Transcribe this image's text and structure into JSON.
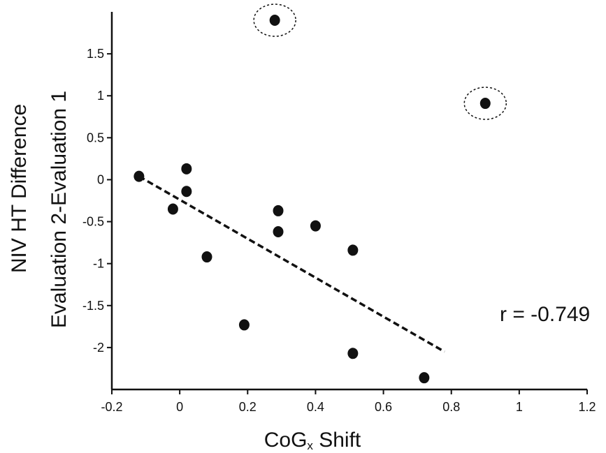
{
  "chart_data": {
    "type": "scatter",
    "title": "",
    "xlabel_main": "CoG",
    "xlabel_sub": "x",
    "xlabel_rest": " Shift",
    "ylabel_line1": "NIV HT Difference",
    "ylabel_line2": "Evaluation 2-Evaluation 1",
    "xlim": [
      -0.2,
      1.2
    ],
    "ylim": [
      -2.5,
      2.0
    ],
    "xticks": [
      -0.2,
      0,
      0.2,
      0.4,
      0.6,
      0.8,
      1,
      1.2
    ],
    "xtick_labels": [
      "-0.2",
      "0",
      "0.2",
      "0.4",
      "0.6",
      "0.8",
      "1",
      "1.2"
    ],
    "yticks": [
      -2,
      -1.5,
      -1,
      -0.5,
      0,
      0.5,
      1,
      1.5
    ],
    "ytick_labels": [
      "-2",
      "-1.5",
      "-1",
      "-0.5",
      "0",
      "0.5",
      "1",
      "1.5"
    ],
    "grid": false,
    "points": [
      {
        "x": -0.12,
        "y": 0.04
      },
      {
        "x": -0.02,
        "y": -0.35
      },
      {
        "x": 0.02,
        "y": 0.13
      },
      {
        "x": 0.02,
        "y": -0.14
      },
      {
        "x": 0.08,
        "y": -0.92
      },
      {
        "x": 0.19,
        "y": -1.73
      },
      {
        "x": 0.29,
        "y": -0.37
      },
      {
        "x": 0.29,
        "y": -0.62
      },
      {
        "x": 0.4,
        "y": -0.55
      },
      {
        "x": 0.51,
        "y": -0.84
      },
      {
        "x": 0.51,
        "y": -2.07
      },
      {
        "x": 0.72,
        "y": -2.36
      }
    ],
    "outliers": [
      {
        "x": 0.28,
        "y": 1.9
      },
      {
        "x": 0.9,
        "y": 0.91
      }
    ],
    "trendline": {
      "x": [
        -0.12,
        0.78
      ],
      "y": [
        0.04,
        -2.05
      ],
      "style": "dashed"
    },
    "annotation": "r = -0.749",
    "colors": {
      "points": "#111111",
      "axis": "#111111"
    }
  }
}
